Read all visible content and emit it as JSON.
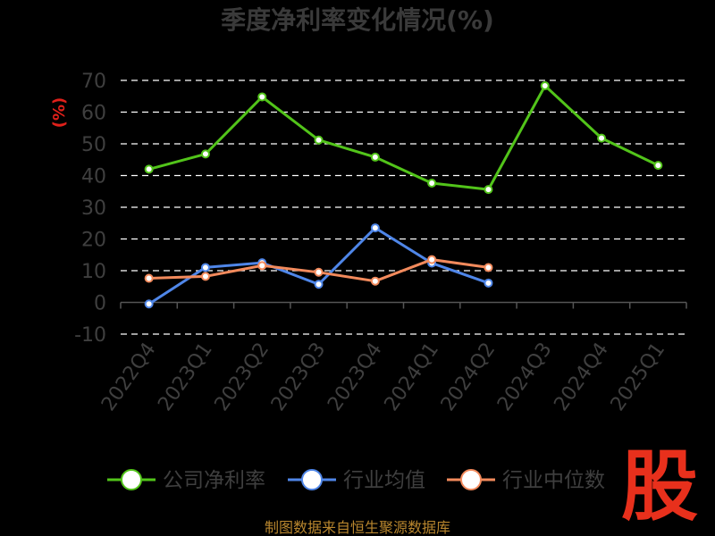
{
  "chart_data": {
    "type": "line",
    "title": "季度净利率变化情况(%)",
    "ylabel": "(%)",
    "xlabel": "",
    "categories": [
      "2022Q4",
      "2023Q1",
      "2023Q2",
      "2023Q3",
      "2023Q4",
      "2024Q1",
      "2024Q2",
      "2024Q3",
      "2024Q4",
      "2025Q1"
    ],
    "ylim": [
      -10,
      70
    ],
    "yticks": [
      "70",
      "60",
      "50",
      "40",
      "30",
      "20",
      "10",
      "0",
      "-10"
    ],
    "grid": true,
    "legend_position": "bottom",
    "series": [
      {
        "name": "公司净利率",
        "color": "#52c41a",
        "values": [
          42.0,
          46.8,
          64.8,
          51.2,
          45.8,
          37.6,
          35.6,
          68.3,
          51.8,
          43.2
        ]
      },
      {
        "name": "行业均值",
        "color": "#4f86e8",
        "values": [
          -0.5,
          11.0,
          12.5,
          5.7,
          23.5,
          12.4,
          6.1,
          null,
          null,
          null
        ]
      },
      {
        "name": "行业中位数",
        "color": "#f28a5c",
        "values": [
          7.6,
          8.2,
          11.6,
          9.5,
          6.7,
          13.5,
          11.0,
          null,
          null,
          null
        ]
      }
    ]
  },
  "source": "制图数据来自恒生聚源数据库",
  "brand_glyph": "股"
}
